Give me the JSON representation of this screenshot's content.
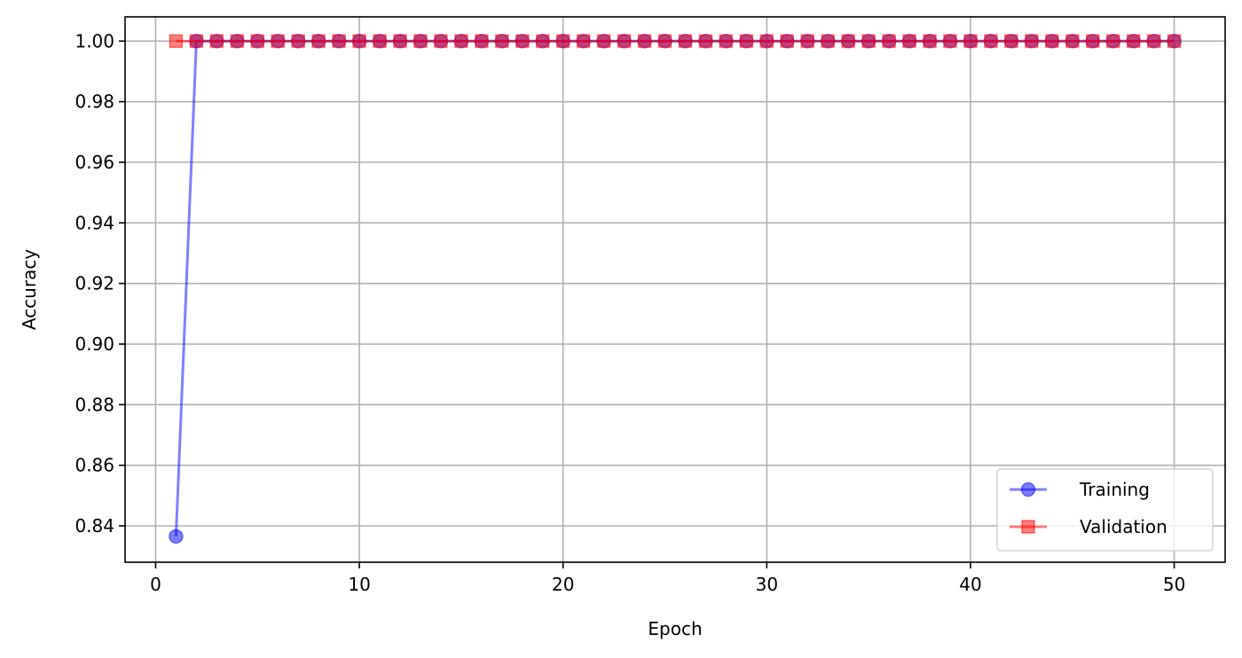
{
  "chart_data": {
    "type": "line",
    "xlabel": "Epoch",
    "ylabel": "Accuracy",
    "xlim": [
      -1.5,
      52.5
    ],
    "ylim": [
      0.828,
      1.008
    ],
    "xticks": [
      0,
      10,
      20,
      30,
      40,
      50
    ],
    "yticks": [
      0.84,
      0.86,
      0.88,
      0.9,
      0.92,
      0.94,
      0.96,
      0.98,
      1.0
    ],
    "ytick_labels": [
      "0.84",
      "0.86",
      "0.88",
      "0.90",
      "0.92",
      "0.94",
      "0.96",
      "0.98",
      "1.00"
    ],
    "grid": true,
    "legend_position": "bottom-right",
    "x": [
      1,
      2,
      3,
      4,
      5,
      6,
      7,
      8,
      9,
      10,
      11,
      12,
      13,
      14,
      15,
      16,
      17,
      18,
      19,
      20,
      21,
      22,
      23,
      24,
      25,
      26,
      27,
      28,
      29,
      30,
      31,
      32,
      33,
      34,
      35,
      36,
      37,
      38,
      39,
      40,
      41,
      42,
      43,
      44,
      45,
      46,
      47,
      48,
      49,
      50
    ],
    "series": [
      {
        "name": "Training",
        "color": "#0000ff",
        "marker": "circle",
        "values": [
          0.8365,
          1.0,
          1.0,
          1.0,
          1.0,
          1.0,
          1.0,
          1.0,
          1.0,
          1.0,
          1.0,
          1.0,
          1.0,
          1.0,
          1.0,
          1.0,
          1.0,
          1.0,
          1.0,
          1.0,
          1.0,
          1.0,
          1.0,
          1.0,
          1.0,
          1.0,
          1.0,
          1.0,
          1.0,
          1.0,
          1.0,
          1.0,
          1.0,
          1.0,
          1.0,
          1.0,
          1.0,
          1.0,
          1.0,
          1.0,
          1.0,
          1.0,
          1.0,
          1.0,
          1.0,
          1.0,
          1.0,
          1.0,
          1.0,
          1.0
        ]
      },
      {
        "name": "Validation",
        "color": "#ff0000",
        "marker": "square",
        "values": [
          1.0,
          1.0,
          1.0,
          1.0,
          1.0,
          1.0,
          1.0,
          1.0,
          1.0,
          1.0,
          1.0,
          1.0,
          1.0,
          1.0,
          1.0,
          1.0,
          1.0,
          1.0,
          1.0,
          1.0,
          1.0,
          1.0,
          1.0,
          1.0,
          1.0,
          1.0,
          1.0,
          1.0,
          1.0,
          1.0,
          1.0,
          1.0,
          1.0,
          1.0,
          1.0,
          1.0,
          1.0,
          1.0,
          1.0,
          1.0,
          1.0,
          1.0,
          1.0,
          1.0,
          1.0,
          1.0,
          1.0,
          1.0,
          1.0,
          1.0
        ]
      }
    ]
  }
}
